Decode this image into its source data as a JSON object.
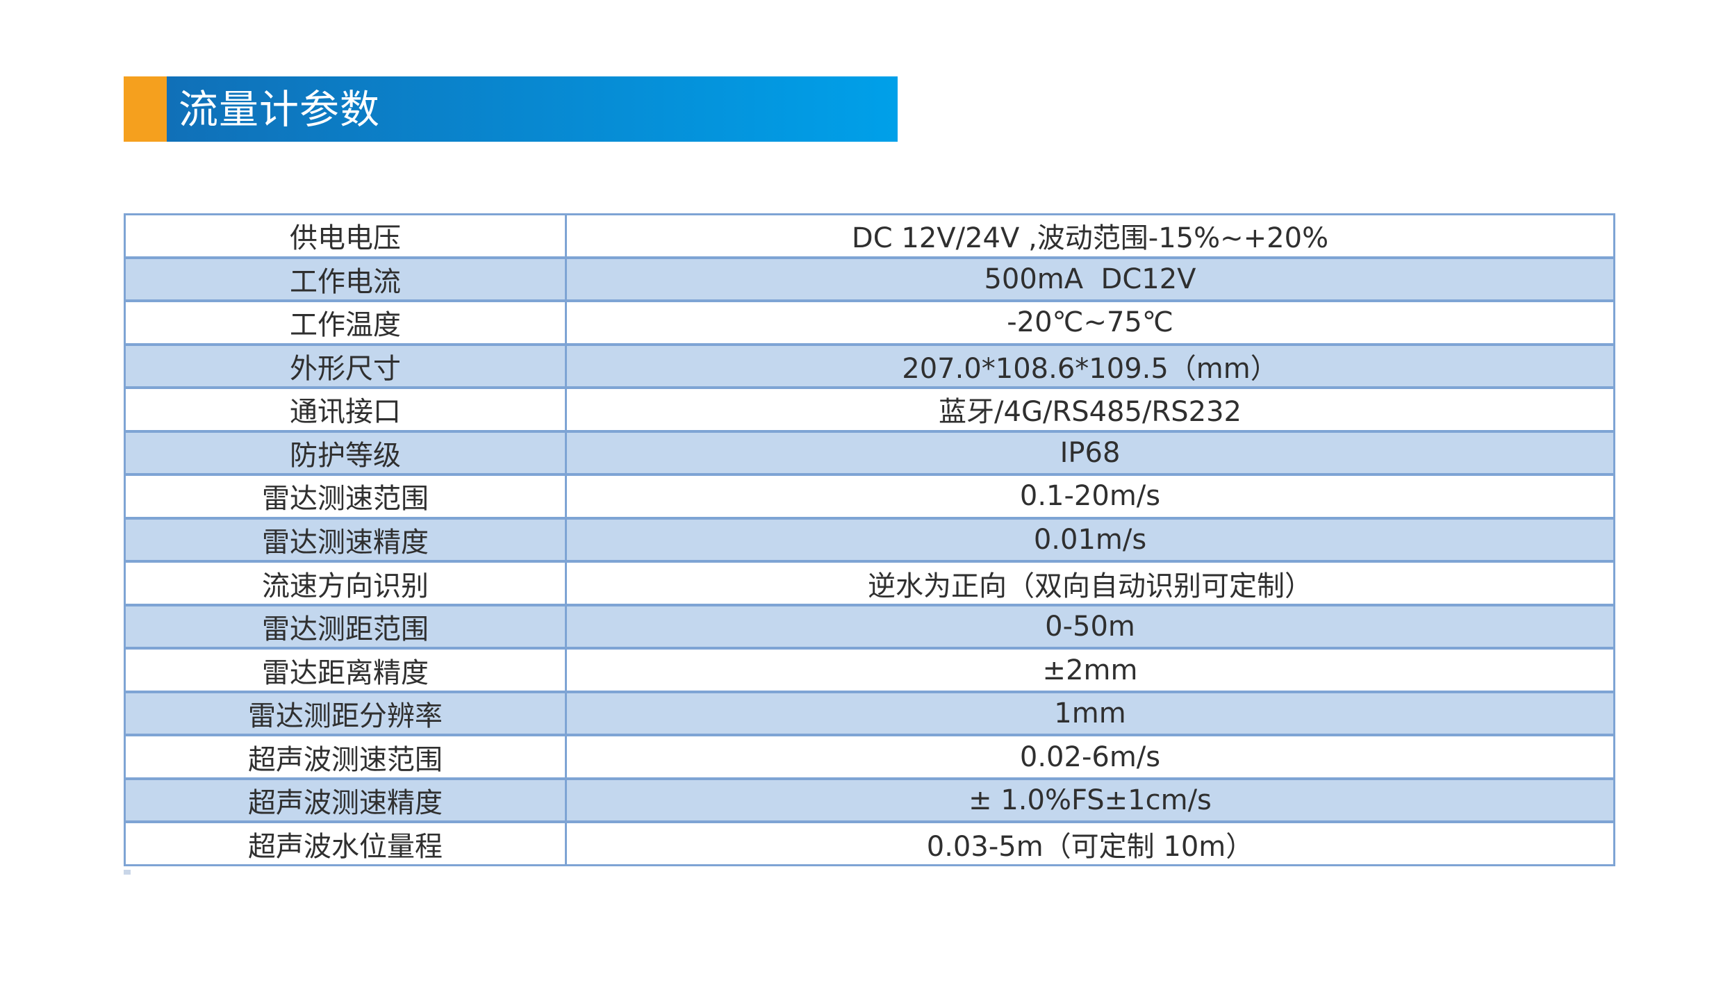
{
  "page": {
    "background_color": "#FFFFFF"
  },
  "banner": {
    "title": "流量计参数",
    "title_color": "#FFFFFF",
    "accent_color": "#F5A01E",
    "gradient_start": "#1070B8",
    "gradient_end": "#00A0E9"
  },
  "table": {
    "border_color": "#7EA4D4",
    "alt_row_color": "#C3D7EE",
    "text_color": "#2F2F2F",
    "rows": [
      {
        "label": "供电电压",
        "value": "DC 12V/24V ,波动范围-15%~+20%"
      },
      {
        "label": "工作电流",
        "value": "500mA  DC12V"
      },
      {
        "label": "工作温度",
        "value": "-20℃~75℃"
      },
      {
        "label": "外形尺寸",
        "value": "207.0*108.6*109.5（mm）"
      },
      {
        "label": "通讯接口",
        "value": "蓝牙/4G/RS485/RS232"
      },
      {
        "label": "防护等级",
        "value": "IP68"
      },
      {
        "label": "雷达测速范围",
        "value": "0.1-20m/s"
      },
      {
        "label": "雷达测速精度",
        "value": "0.01m/s"
      },
      {
        "label": "流速方向识别",
        "value": "逆水为正向（双向自动识别可定制）"
      },
      {
        "label": "雷达测距范围",
        "value": "0-50m"
      },
      {
        "label": "雷达距离精度",
        "value": "±2mm"
      },
      {
        "label": "雷达测距分辨率",
        "value": "1mm"
      },
      {
        "label": "超声波测速范围",
        "value": "0.02-6m/s"
      },
      {
        "label": "超声波测速精度",
        "value": "± 1.0%FS±1cm/s"
      },
      {
        "label": "超声波水位量程",
        "value": "0.03-5m（可定制 10m）"
      }
    ]
  }
}
